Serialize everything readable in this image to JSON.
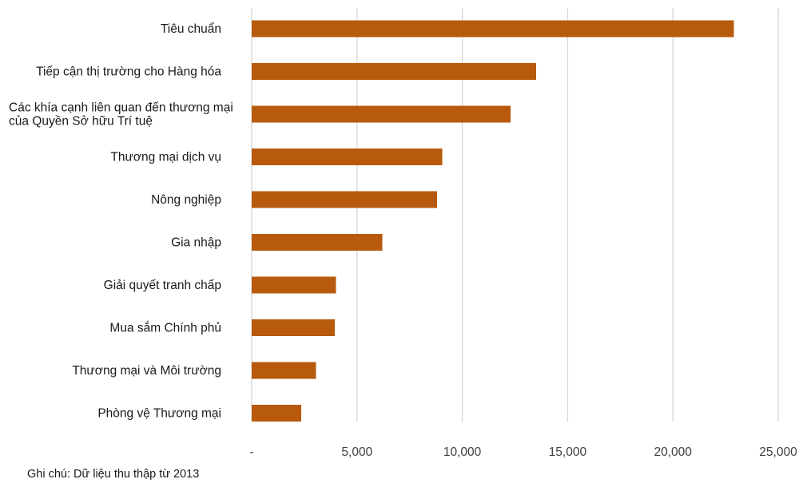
{
  "colors": {
    "bar": "#b85a0d",
    "grid": "#d9d9d9",
    "text": "#1a1a1a"
  },
  "note": "Ghi chú: Dữ liệu thu thập từ 2013",
  "chart_data": {
    "type": "bar",
    "orientation": "horizontal",
    "title": "",
    "xlabel": "",
    "ylabel": "",
    "categories": [
      [
        "Tiêu chuẩn"
      ],
      [
        "Tiếp cận thị trường cho Hàng hóa"
      ],
      [
        "Các khía cạnh liên quan đến thương mại",
        "của Quyền Sở hữu Trí tuệ"
      ],
      [
        "Thương mại dịch vụ"
      ],
      [
        "Nông nghiệp"
      ],
      [
        "Gia nhập"
      ],
      [
        "Giải quyết tranh chấp"
      ],
      [
        "Mua sắm Chính phủ"
      ],
      [
        "Thương mại và Môi trường"
      ],
      [
        "Phòng vệ Thương mại"
      ]
    ],
    "values": [
      22900,
      13500,
      12300,
      9050,
      8800,
      6200,
      4000,
      3950,
      3050,
      2350
    ],
    "xlim": [
      0,
      25000
    ],
    "xticks": [
      0,
      5000,
      10000,
      15000,
      20000,
      25000
    ],
    "xtick_labels": [
      "-",
      "5,000",
      "10,000",
      "15,000",
      "20,000",
      "25,000"
    ],
    "grid": true,
    "legend": "none"
  }
}
